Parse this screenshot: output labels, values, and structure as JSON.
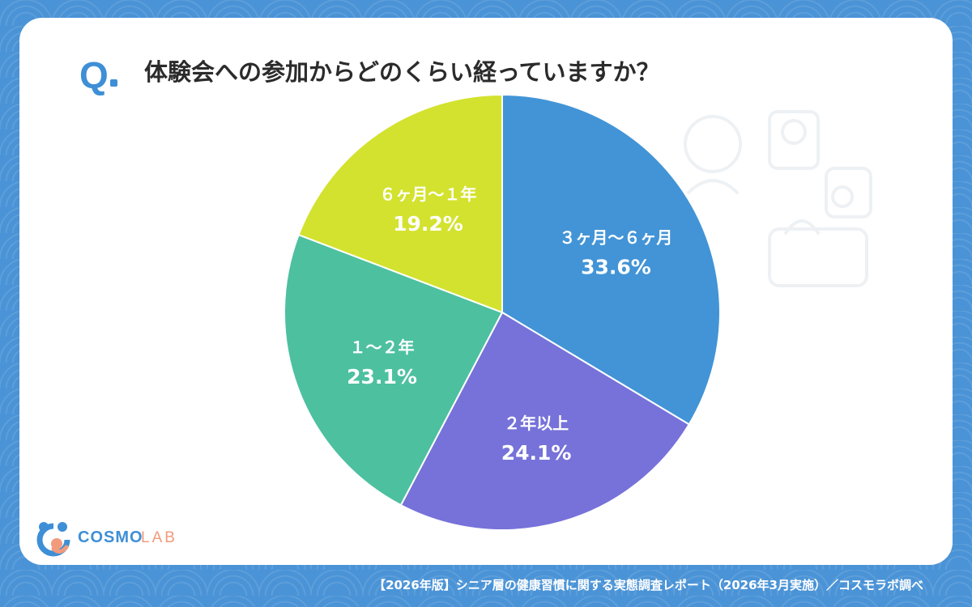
{
  "header": {
    "q_mark": "Q",
    "question": "体験会への参加からどのくらい経っていますか？"
  },
  "chart_data": {
    "type": "pie",
    "start_angle": "12 o'clock",
    "direction": "clockwise",
    "slices": [
      {
        "label": "３ヶ月〜６ヶ月",
        "value": 33.6,
        "value_label": "33.6%",
        "color": "#4294d6"
      },
      {
        "label": "２年以上",
        "value": 24.1,
        "value_label": "24.1%",
        "color": "#7672d9"
      },
      {
        "label": "１〜２年",
        "value": 23.1,
        "value_label": "23.1%",
        "color": "#4dc0a0"
      },
      {
        "label": "６ヶ月〜１年",
        "value": 19.2,
        "value_label": "19.2%",
        "color": "#d3e22e"
      }
    ]
  },
  "logo": {
    "brand_main": "COSMO",
    "brand_sub": "LAB",
    "main_color": "#3e8fd6",
    "sub_color": "#f29a7c"
  },
  "footer": {
    "source": "【2026年版】シニア層の健康習慣に関する実態調査レポート（2026年3月実施）／コスモラボ調べ"
  },
  "colors": {
    "background": "#4a93d6",
    "card": "#ffffff",
    "accent": "#3e8fd6"
  }
}
